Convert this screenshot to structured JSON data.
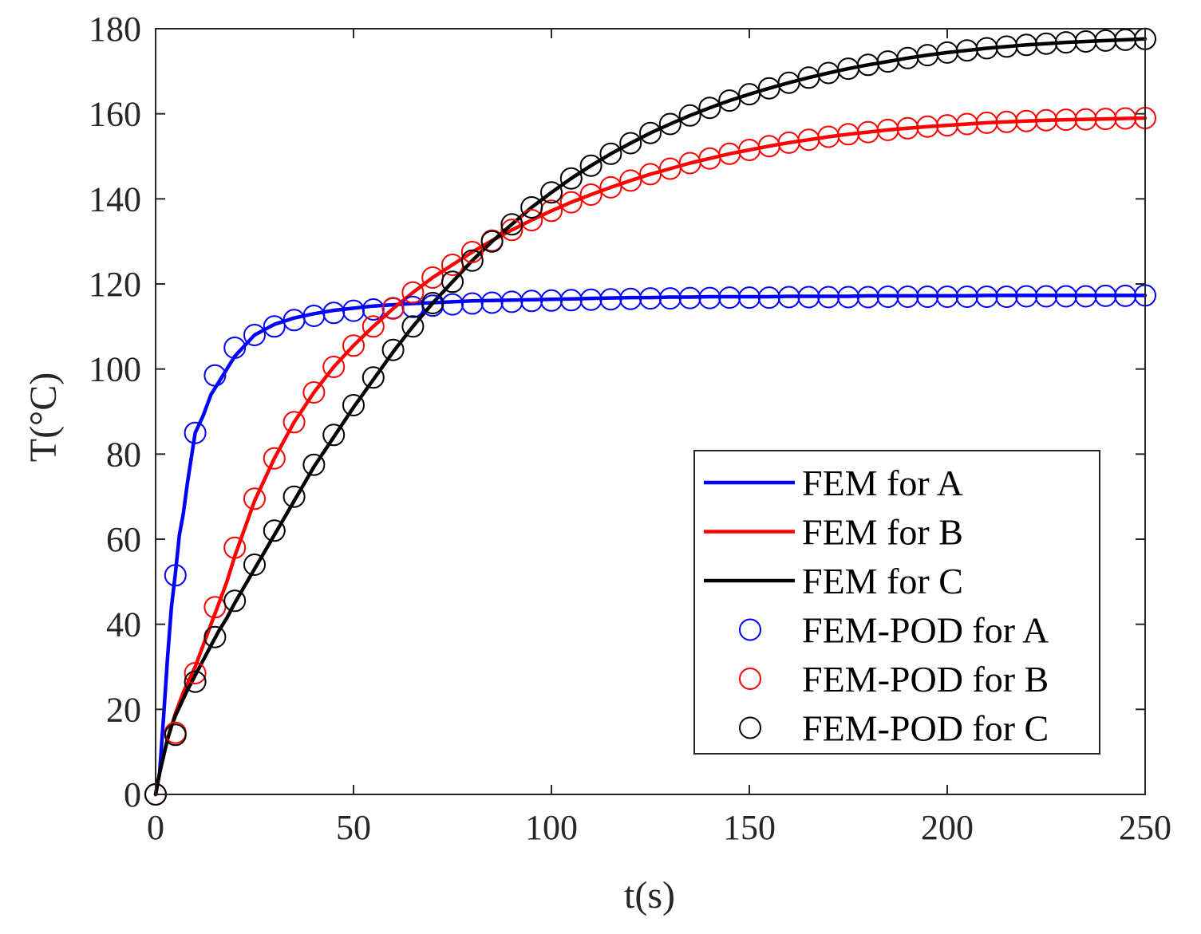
{
  "chart_data": {
    "type": "line",
    "xlabel": "t(s)",
    "ylabel": "T(°C)",
    "xlim": [
      0,
      250
    ],
    "ylim": [
      0,
      180
    ],
    "xticks": [
      0,
      50,
      100,
      150,
      200,
      250
    ],
    "yticks": [
      0,
      20,
      40,
      60,
      80,
      100,
      120,
      140,
      160,
      180
    ],
    "grid": false,
    "legend_position": "bottom-right",
    "fem_t": [
      0,
      1,
      2,
      3,
      4,
      5,
      6,
      7,
      8,
      9,
      10,
      12,
      14,
      16,
      18,
      20,
      25,
      30,
      35,
      40,
      45,
      50,
      55,
      60,
      65,
      70,
      75,
      80,
      85,
      90,
      95,
      100,
      105,
      110,
      115,
      120,
      125,
      130,
      135,
      140,
      145,
      150,
      155,
      160,
      165,
      170,
      175,
      180,
      185,
      190,
      195,
      200,
      205,
      210,
      215,
      220,
      225,
      230,
      235,
      240,
      245,
      250
    ],
    "pod_t": [
      0,
      5,
      10,
      15,
      20,
      25,
      30,
      35,
      40,
      45,
      50,
      55,
      60,
      65,
      70,
      75,
      80,
      85,
      90,
      95,
      100,
      105,
      110,
      115,
      120,
      125,
      130,
      135,
      140,
      145,
      150,
      155,
      160,
      165,
      170,
      175,
      180,
      185,
      190,
      195,
      200,
      205,
      210,
      215,
      220,
      225,
      230,
      235,
      240,
      245,
      250
    ],
    "series": [
      {
        "name": "FEM for A",
        "kind": "line",
        "color": "#0000ff",
        "values": [
          0,
          5,
          18,
          32,
          44,
          52,
          61,
          66,
          73,
          79,
          85,
          89,
          94,
          97,
          100,
          103,
          108,
          110.5,
          112,
          113,
          113.8,
          114.3,
          114.8,
          115.1,
          115.4,
          115.6,
          115.8,
          116,
          116.1,
          116.2,
          116.3,
          116.4,
          116.5,
          116.6,
          116.7,
          116.8,
          116.8,
          116.9,
          116.9,
          117,
          117,
          117,
          117,
          117.1,
          117.1,
          117.1,
          117.1,
          117.2,
          117.2,
          117.2,
          117.2,
          117.2,
          117.2,
          117.3,
          117.3,
          117.3,
          117.3,
          117.3,
          117.3,
          117.3,
          117.3,
          117.3
        ]
      },
      {
        "name": "FEM for B",
        "kind": "line",
        "color": "#ff0000",
        "values": [
          0,
          5,
          9,
          13,
          16,
          19,
          21.5,
          24,
          26,
          28,
          30,
          35,
          40,
          45,
          50,
          56,
          69,
          79,
          87.5,
          94.5,
          100.5,
          105.5,
          110,
          114.2,
          118,
          121.5,
          124.5,
          127.5,
          130.2,
          132.7,
          135,
          137.2,
          139.2,
          141,
          142.7,
          144.3,
          145.8,
          147.1,
          148.4,
          149.5,
          150.6,
          151.5,
          152.4,
          153.2,
          153.9,
          154.6,
          155.2,
          155.7,
          156.2,
          156.6,
          157,
          157.3,
          157.6,
          157.9,
          158.1,
          158.3,
          158.5,
          158.6,
          158.7,
          158.8,
          158.9,
          159
        ]
      },
      {
        "name": "FEM for C",
        "kind": "line",
        "color": "#000000",
        "values": [
          0,
          5,
          9,
          13,
          16,
          18.5,
          20.5,
          22.5,
          24.5,
          26.2,
          28,
          31.5,
          35,
          38.5,
          41.5,
          45,
          53,
          61,
          69,
          77,
          84,
          91,
          97.5,
          104,
          110,
          115.5,
          120.5,
          125.5,
          130,
          134,
          138,
          141.5,
          144.8,
          147.8,
          150.6,
          153.1,
          155.5,
          157.6,
          159.6,
          161.4,
          163.1,
          164.6,
          166,
          167.3,
          168.5,
          169.6,
          170.6,
          171.5,
          172.3,
          173.1,
          173.8,
          174.4,
          174.9,
          175.4,
          175.8,
          176.2,
          176.5,
          176.8,
          177,
          177.2,
          177.4,
          177.6
        ]
      },
      {
        "name": "FEM-POD for A",
        "kind": "markers",
        "color": "#0000ff",
        "values": [
          0,
          51.5,
          85,
          98.5,
          105,
          108,
          110,
          111.5,
          112.5,
          113.2,
          113.7,
          114,
          114.3,
          114.6,
          114.9,
          115.2,
          115.4,
          115.6,
          115.8,
          116,
          116.1,
          116.2,
          116.3,
          116.4,
          116.5,
          116.6,
          116.6,
          116.7,
          116.7,
          116.8,
          116.8,
          116.8,
          116.9,
          116.9,
          116.9,
          116.9,
          116.9,
          117,
          117,
          117,
          117,
          117,
          117,
          117,
          117.1,
          117.1,
          117.1,
          117.1,
          117.2,
          117.2,
          117.3
        ]
      },
      {
        "name": "FEM-POD for B",
        "kind": "markers",
        "color": "#ff0000",
        "values": [
          0,
          14.5,
          28.5,
          44,
          58,
          69.5,
          79,
          87.5,
          94.5,
          100.5,
          105.5,
          110,
          114.2,
          118,
          121.5,
          124.5,
          127.5,
          130.2,
          132.7,
          135,
          137.2,
          139.2,
          141,
          142.7,
          144.3,
          145.8,
          147.1,
          148.4,
          149.5,
          150.6,
          151.5,
          152.4,
          153.2,
          153.9,
          154.6,
          155.2,
          155.7,
          156.2,
          156.6,
          157,
          157.3,
          157.6,
          157.9,
          158.1,
          158.3,
          158.5,
          158.6,
          158.7,
          158.8,
          158.9,
          159
        ]
      },
      {
        "name": "FEM-POD for C",
        "kind": "markers",
        "color": "#000000",
        "values": [
          0,
          14,
          26.5,
          37,
          45.5,
          54,
          62,
          70,
          77.5,
          84.5,
          91.5,
          98,
          104.5,
          110,
          115.5,
          120.5,
          125.5,
          130,
          134,
          138,
          141.5,
          144.8,
          147.8,
          150.6,
          153.1,
          155.5,
          157.6,
          159.6,
          161.4,
          163.1,
          164.6,
          166,
          167.3,
          168.5,
          169.6,
          170.6,
          171.5,
          172.3,
          173.1,
          173.8,
          174.4,
          174.9,
          175.4,
          175.8,
          176.2,
          176.5,
          176.8,
          177,
          177.2,
          177.4,
          177.6
        ]
      }
    ]
  }
}
